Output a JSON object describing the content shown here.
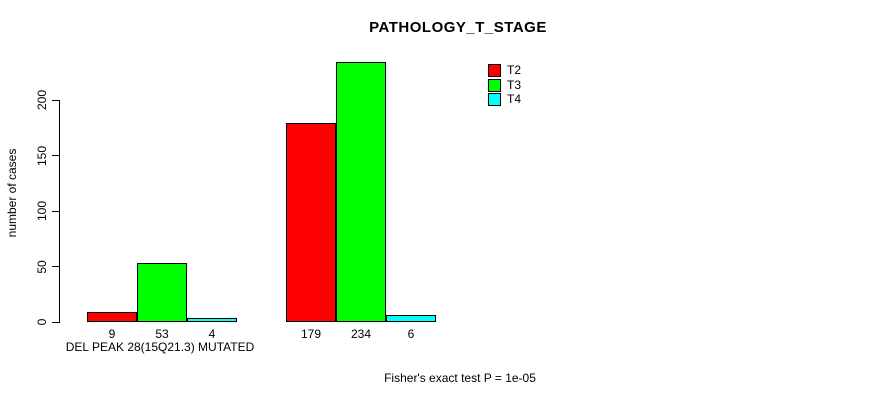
{
  "chart_data": {
    "type": "bar",
    "title": "PATHOLOGY_T_STAGE",
    "ylabel": "number of cases",
    "xlabel": "DEL PEAK 28(15Q21.3) MUTATED",
    "footer": "Fisher's exact test P = 1e-05",
    "ylim": [
      0,
      240
    ],
    "yticks": [
      0,
      50,
      100,
      150,
      200
    ],
    "grid": false,
    "legend_position": "top-right",
    "legend_entries": [
      "T2",
      "T3",
      "T4"
    ],
    "series": [
      {
        "name": "T2",
        "color": "#ff0000",
        "values": [
          9,
          179
        ]
      },
      {
        "name": "T3",
        "color": "#00ff00",
        "values": [
          53,
          234
        ]
      },
      {
        "name": "T4",
        "color": "#00ffff",
        "values": [
          4,
          6
        ]
      }
    ],
    "bar_value_labels": [
      [
        9,
        53,
        4
      ],
      [
        179,
        234,
        6
      ]
    ]
  }
}
